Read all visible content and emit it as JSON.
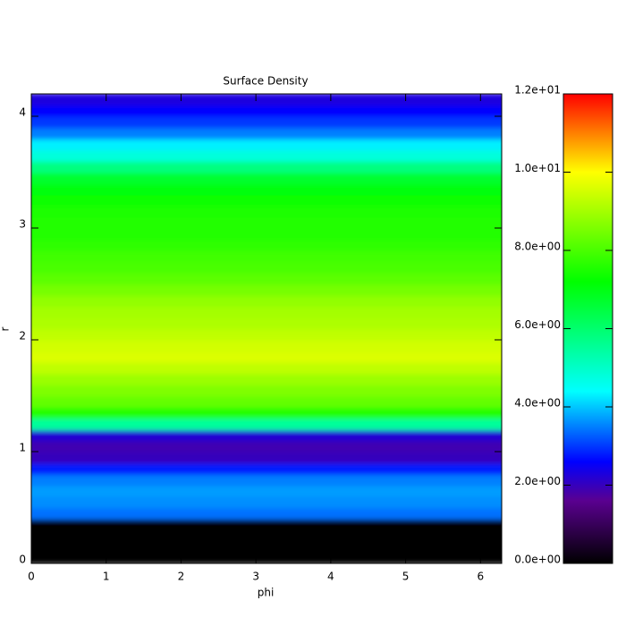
{
  "chart_data": {
    "type": "heatmap",
    "title": "Surface Density",
    "x_label": "phi",
    "y_label": "r",
    "xlim": [
      0,
      6.283
    ],
    "ylim": [
      0,
      4.2
    ],
    "xticks": [
      0,
      1,
      2,
      3,
      4,
      5,
      6
    ],
    "yticks": [
      0,
      1,
      2,
      3,
      4
    ],
    "r_step": 0.1,
    "r": [
      0.0,
      0.1,
      0.2,
      0.3,
      0.4,
      0.5,
      0.6,
      0.7,
      0.8,
      0.9,
      1.0,
      1.1,
      1.2,
      1.3,
      1.4,
      1.5,
      1.6,
      1.7,
      1.8,
      1.9,
      2.0,
      2.1,
      2.2,
      2.3,
      2.4,
      2.5,
      2.6,
      2.7,
      2.8,
      2.9,
      3.0,
      3.1,
      3.2,
      3.3,
      3.4,
      3.5,
      3.6,
      3.7,
      3.8,
      3.9,
      4.0,
      4.1
    ],
    "values": [
      0,
      0,
      0,
      0,
      3.4,
      3.6,
      3.7,
      3.5,
      2.8,
      2.0,
      1.9,
      2.2,
      5.5,
      7.6,
      8.3,
      8.6,
      8.9,
      9.3,
      9.6,
      9.5,
      9.3,
      9.1,
      9.0,
      8.8,
      8.5,
      8.2,
      8.0,
      7.9,
      7.7,
      7.6,
      7.6,
      7.5,
      7.3,
      7.1,
      6.7,
      5.8,
      4.8,
      4.3,
      3.5,
      3.0,
      2.6,
      2.3
    ],
    "clim": [
      0,
      12
    ],
    "cticks": [
      {
        "value": 0,
        "label": "0.0e+00"
      },
      {
        "value": 2,
        "label": "2.0e+00"
      },
      {
        "value": 4,
        "label": "4.0e+00"
      },
      {
        "value": 6,
        "label": "6.0e+00"
      },
      {
        "value": 8,
        "label": "8.0e+00"
      },
      {
        "value": 10,
        "label": "1.0e+01"
      },
      {
        "value": 12,
        "label": "1.2e+01"
      }
    ],
    "colormap": [
      [
        0,
        "#000000"
      ],
      [
        1.6,
        "#5a0090"
      ],
      [
        2.6,
        "#0000ff"
      ],
      [
        4.4,
        "#00ffff"
      ],
      [
        7.2,
        "#00ff00"
      ],
      [
        10,
        "#ffff00"
      ],
      [
        12,
        "#ff0000"
      ]
    ]
  }
}
